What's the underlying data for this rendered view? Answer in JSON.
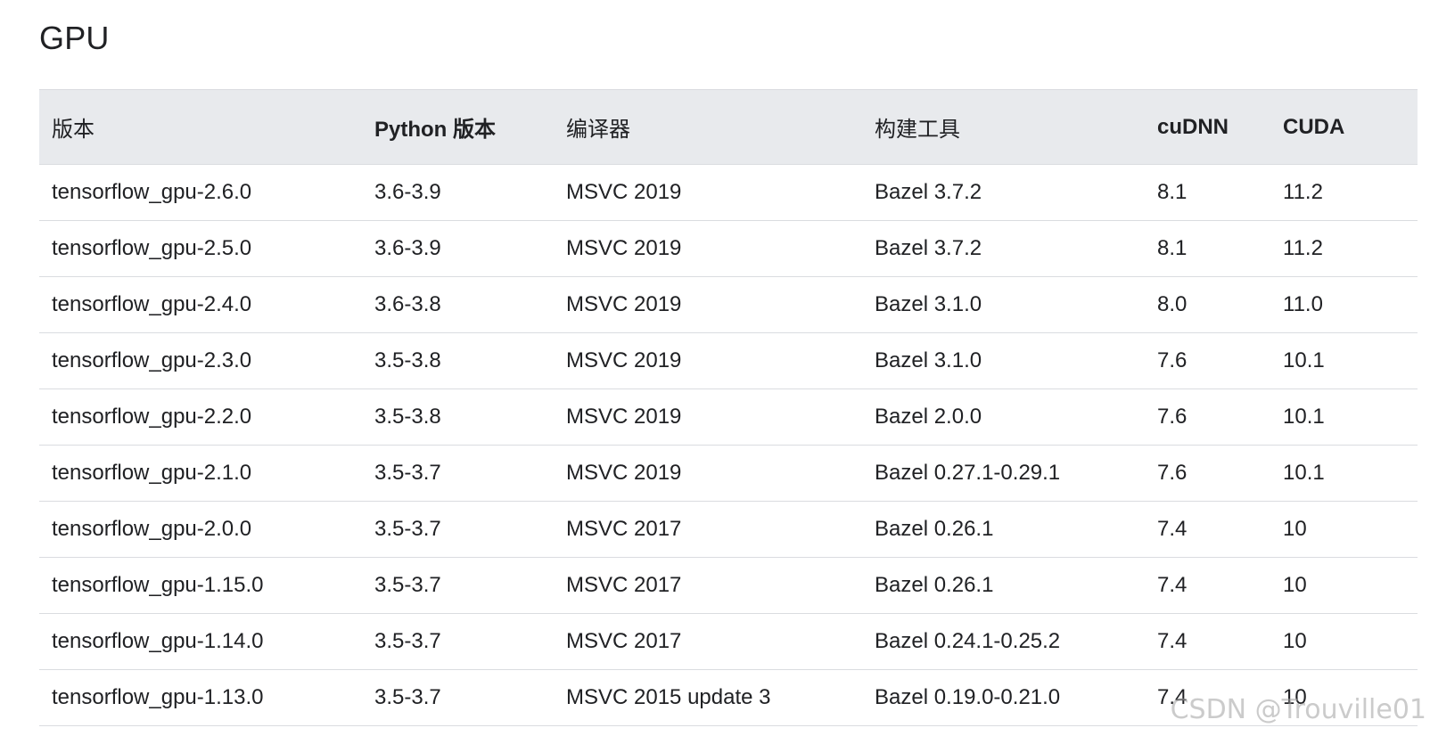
{
  "title": "GPU",
  "table": {
    "headers": [
      "版本",
      "Python 版本",
      "编译器",
      "构建工具",
      "cuDNN",
      "CUDA"
    ],
    "rows": [
      [
        "tensorflow_gpu-2.6.0",
        "3.6-3.9",
        "MSVC 2019",
        "Bazel 3.7.2",
        "8.1",
        "11.2"
      ],
      [
        "tensorflow_gpu-2.5.0",
        "3.6-3.9",
        "MSVC 2019",
        "Bazel 3.7.2",
        "8.1",
        "11.2"
      ],
      [
        "tensorflow_gpu-2.4.0",
        "3.6-3.8",
        "MSVC 2019",
        "Bazel 3.1.0",
        "8.0",
        "11.0"
      ],
      [
        "tensorflow_gpu-2.3.0",
        "3.5-3.8",
        "MSVC 2019",
        "Bazel 3.1.0",
        "7.6",
        "10.1"
      ],
      [
        "tensorflow_gpu-2.2.0",
        "3.5-3.8",
        "MSVC 2019",
        "Bazel 2.0.0",
        "7.6",
        "10.1"
      ],
      [
        "tensorflow_gpu-2.1.0",
        "3.5-3.7",
        "MSVC 2019",
        "Bazel 0.27.1-0.29.1",
        "7.6",
        "10.1"
      ],
      [
        "tensorflow_gpu-2.0.0",
        "3.5-3.7",
        "MSVC 2017",
        "Bazel 0.26.1",
        "7.4",
        "10"
      ],
      [
        "tensorflow_gpu-1.15.0",
        "3.5-3.7",
        "MSVC 2017",
        "Bazel 0.26.1",
        "7.4",
        "10"
      ],
      [
        "tensorflow_gpu-1.14.0",
        "3.5-3.7",
        "MSVC 2017",
        "Bazel 0.24.1-0.25.2",
        "7.4",
        "10"
      ],
      [
        "tensorflow_gpu-1.13.0",
        "3.5-3.7",
        "MSVC 2015 update 3",
        "Bazel 0.19.0-0.21.0",
        "7.4",
        "10"
      ]
    ]
  },
  "watermark": "CSDN @Trouville01"
}
